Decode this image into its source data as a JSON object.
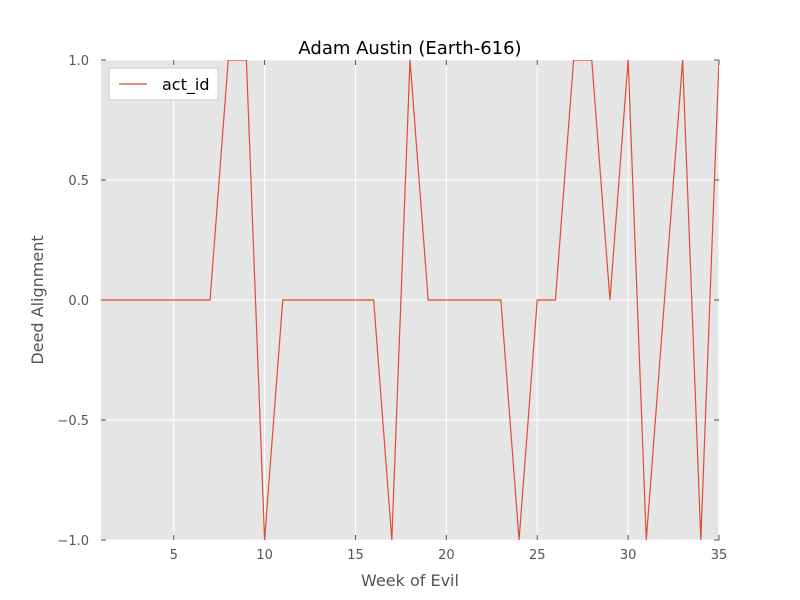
{
  "chart_data": {
    "type": "line",
    "title": "Adam Austin (Earth-616)",
    "xlabel": "Week of Evil",
    "ylabel": "Deed Alignment",
    "xlim": [
      1,
      35
    ],
    "ylim": [
      -1.0,
      1.0
    ],
    "x_ticks": [
      5,
      10,
      15,
      20,
      25,
      30,
      35
    ],
    "x_tick_labels": [
      "5",
      "10",
      "15",
      "20",
      "25",
      "30",
      "35"
    ],
    "y_ticks": [
      -1.0,
      -0.5,
      0.0,
      0.5,
      1.0
    ],
    "y_tick_labels": [
      "−1.0",
      "−0.5",
      "0.0",
      "0.5",
      "1.0"
    ],
    "grid": true,
    "legend_position": "top-left",
    "series": [
      {
        "name": "act_id",
        "color": "#e24a33",
        "x": [
          1,
          2,
          3,
          4,
          5,
          6,
          7,
          8,
          9,
          10,
          11,
          12,
          13,
          14,
          15,
          16,
          17,
          18,
          19,
          20,
          21,
          22,
          23,
          24,
          25,
          26,
          27,
          28,
          29,
          30,
          31,
          32,
          33,
          34,
          35
        ],
        "values": [
          0,
          0,
          0,
          0,
          0,
          0,
          0,
          1,
          1,
          -1,
          0,
          0,
          0,
          0,
          0,
          0,
          -1,
          1,
          0,
          0,
          0,
          0,
          0,
          -1,
          0,
          0,
          1,
          1,
          0,
          1,
          -1,
          0,
          1,
          -1,
          1
        ]
      }
    ]
  },
  "colors": {
    "plot_background": "#e5e5e5",
    "grid": "#ffffff",
    "axis_text": "#555555",
    "title_text": "#000000"
  }
}
